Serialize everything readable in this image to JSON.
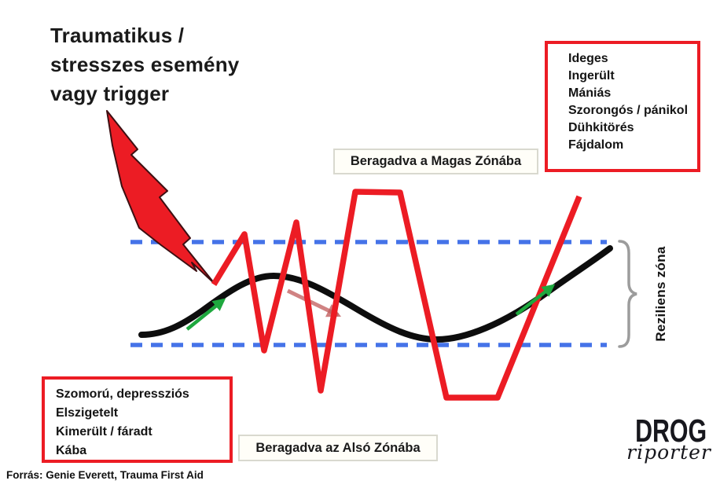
{
  "title": "Traumatikus /\nstresszes esemény\nvagy trigger",
  "high_zone_box": {
    "items": [
      "Ideges",
      "Ingerült",
      "Mániás",
      "Szorongós / pánikol",
      "Dühkitörés",
      "Fájdalom"
    ]
  },
  "low_zone_box": {
    "items": [
      "Szomorú, depressziós",
      "Elszigetelt",
      "Kimerült / fáradt",
      "Kába"
    ]
  },
  "labels": {
    "stuck_high": "Beragadva a Magas Zónába",
    "stuck_low": "Beragadva az Alsó Zónába",
    "resilient_zone": "Reziliens zóna"
  },
  "source": "Forrás: Genie Everett, Trauma First Aid",
  "logo": {
    "top": "DROG",
    "bottom": "riporter"
  },
  "colors": {
    "red": "#ec1c24",
    "blue": "#4573e8",
    "black": "#0d0d0d",
    "green": "#1ea83e",
    "faded_arrow": "#c05a5a",
    "brace": "#9c9c9c",
    "lightning_outline": "#3d0f12"
  }
}
